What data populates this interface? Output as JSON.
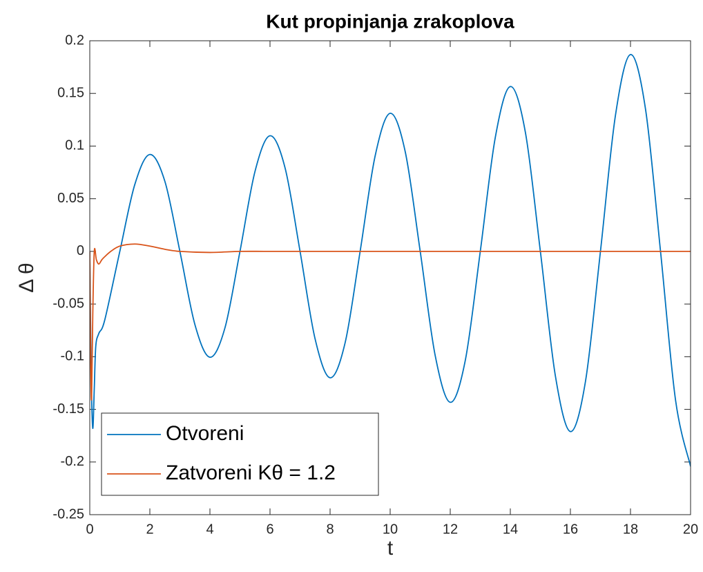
{
  "chart_data": {
    "type": "line",
    "title": "Kut propinjanja zrakoplova",
    "xlabel": "t",
    "ylabel": "Δ θ",
    "xlim": [
      0,
      20
    ],
    "xticks": [
      0,
      2,
      4,
      6,
      8,
      10,
      12,
      14,
      16,
      18,
      20
    ],
    "ylim": [
      -0.25,
      0.2
    ],
    "yticks": [
      -0.25,
      -0.2,
      -0.15,
      -0.1,
      -0.05,
      0,
      0.05,
      0.1,
      0.15,
      0.2
    ],
    "grid": false,
    "legend": "lower left",
    "series": [
      {
        "name": "Otvoreni",
        "color": "#0072bd",
        "x": [
          0,
          0.05,
          0.1,
          0.15,
          0.2,
          0.3,
          0.5,
          1,
          1.5,
          2,
          2.5,
          3,
          3.5,
          4,
          4.5,
          5,
          5.5,
          6,
          6.5,
          7,
          7.5,
          8,
          8.5,
          9,
          9.5,
          10,
          10.5,
          11,
          11.5,
          12,
          12.5,
          13,
          13.5,
          14,
          14.5,
          15,
          15.5,
          16,
          16.5,
          17,
          17.5,
          18,
          18.5,
          19,
          19.5,
          20
        ],
        "values": [
          0,
          -0.12,
          -0.168,
          -0.13,
          -0.09,
          -0.078,
          -0.065,
          0,
          0.0636,
          0.092,
          0.0665,
          0,
          -0.0695,
          -0.1005,
          -0.0726,
          0,
          0.0759,
          0.1098,
          0.0794,
          0,
          -0.083,
          -0.12,
          -0.0868,
          0,
          0.0907,
          0.1311,
          0.0948,
          0,
          -0.0991,
          -0.1433,
          -0.1036,
          0,
          0.1083,
          0.1565,
          0.1132,
          0,
          -0.1183,
          -0.1711,
          -0.1237,
          0,
          0.1293,
          0.1869,
          0.1351,
          0,
          -0.1413,
          -0.2042
        ]
      },
      {
        "name": "Zatvoreni Kθ = 1.2",
        "color": "#d95319",
        "x": [
          0,
          0.03,
          0.06,
          0.1,
          0.15,
          0.22,
          0.3,
          0.4,
          0.5,
          0.7,
          1,
          1.5,
          2,
          2.5,
          3,
          4,
          5,
          6,
          8,
          10,
          12,
          14,
          16,
          18,
          20
        ],
        "values": [
          0,
          -0.1,
          -0.14,
          -0.06,
          0,
          -0.008,
          -0.012,
          -0.008,
          -0.005,
          0,
          0.005,
          0.007,
          0.005,
          0.002,
          0,
          -0.001,
          0,
          0,
          0,
          0,
          0,
          0,
          0,
          0,
          0
        ]
      }
    ]
  }
}
